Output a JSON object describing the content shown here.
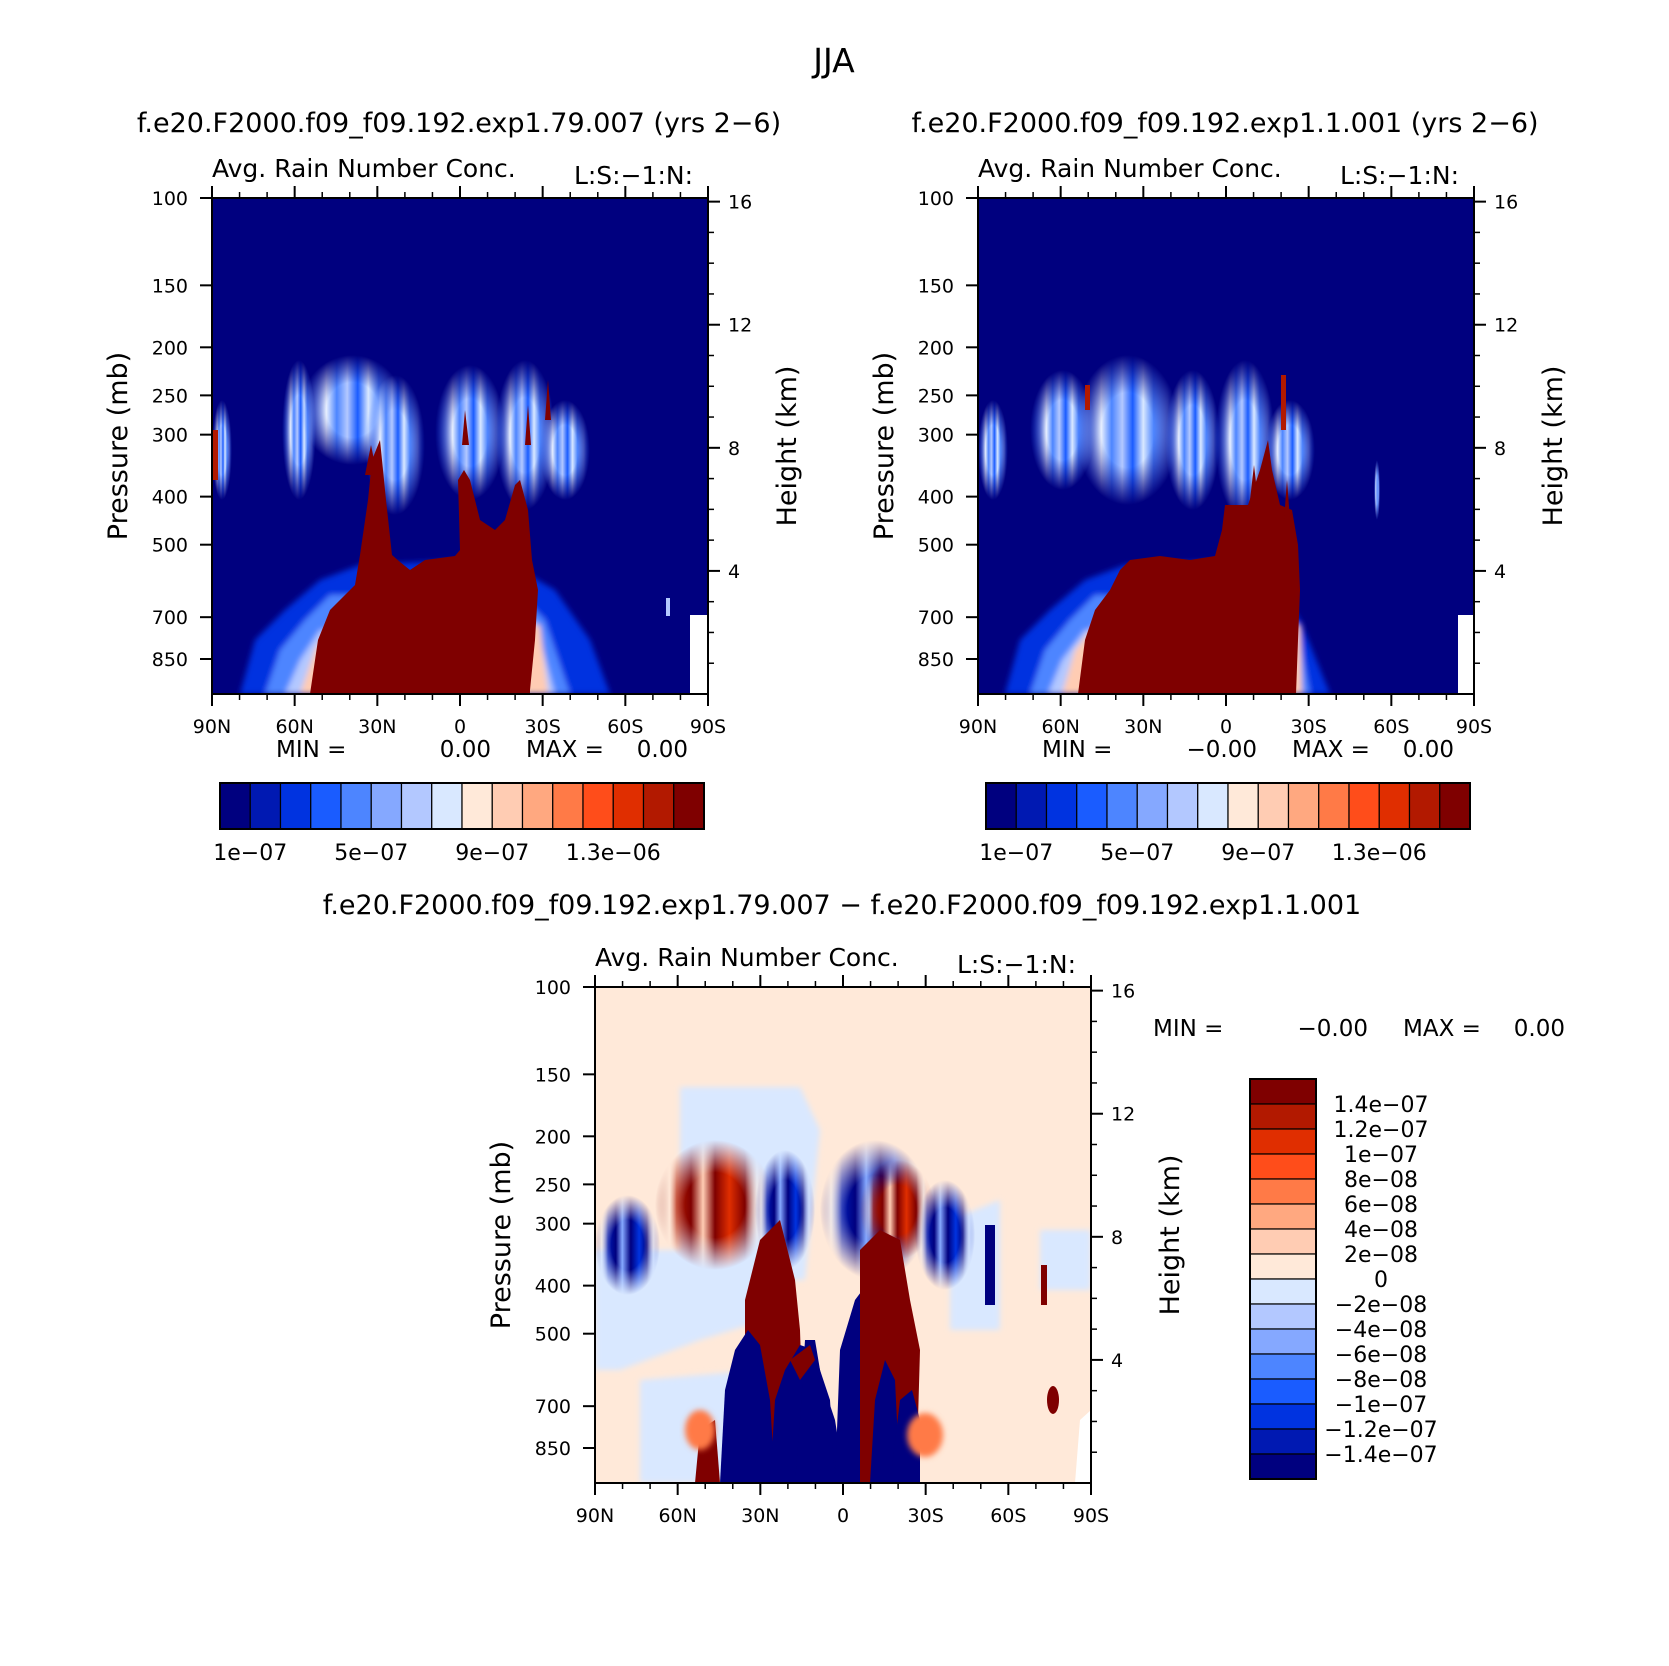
{
  "page": {
    "season": "JJA",
    "run_a_title": "f.e20.F2000.f09_f09.192.exp1.79.007 (yrs 2−6)",
    "run_b_title": "f.e20.F2000.f09_f09.192.exp1.1.001 (yrs 2−6)",
    "diff_title": "f.e20.F2000.f09_f09.192.exp1.79.007 − f.e20.F2000.f09_f09.192.exp1.1.001"
  },
  "chart_data": [
    {
      "id": "panel-a",
      "type": "heatmap",
      "variable_label": "Avg. Rain Number Conc.",
      "corner_label": "L:S:−1:N:",
      "ylabel": "Pressure (mb)",
      "y2label": "Height (km)",
      "x_ticks": [
        "90N",
        "60N",
        "30N",
        "0",
        "30S",
        "60S",
        "90S"
      ],
      "x_tick_values": [
        90,
        60,
        30,
        0,
        -30,
        -60,
        -90
      ],
      "y_ticks": [
        "100",
        "150",
        "200",
        "250",
        "300",
        "400",
        "500",
        "700",
        "850"
      ],
      "y_tick_values": [
        100,
        150,
        200,
        250,
        300,
        400,
        500,
        700,
        850
      ],
      "y2_ticks": [
        "16",
        "12",
        "8",
        "4"
      ],
      "y2_tick_values": [
        16,
        12,
        8,
        4
      ],
      "xlim": [
        90,
        -90
      ],
      "ylim": [
        100,
        1000
      ],
      "y_scale": "log",
      "stats": {
        "min_label": "MIN =",
        "min_value": "0.00",
        "max_label": "MAX =",
        "max_value": "0.00"
      },
      "colorbar": {
        "orientation": "horizontal",
        "colors": [
          "#00007f",
          "#0019b2",
          "#0033e0",
          "#1a5cff",
          "#4d85ff",
          "#85a8ff",
          "#b3c8ff",
          "#d9e8ff",
          "#ffe9d9",
          "#ffccb3",
          "#ffa880",
          "#ff7a47",
          "#ff4d1a",
          "#e02e00",
          "#b21900",
          "#7f0000"
        ],
        "labels": [
          "1e−07",
          "5e−07",
          "9e−07",
          "1.3e−06"
        ]
      },
      "fields": {
        "background": "#00007f",
        "core": {
          "lat_range": [
            40,
            -28
          ],
          "top_mb": "about 500",
          "north_peak_top_mb": 400,
          "south_peak_top_mb": 350
        },
        "upper_blobs_mb": [
          250,
          350
        ]
      }
    },
    {
      "id": "panel-b",
      "type": "heatmap",
      "variable_label": "Avg. Rain Number Conc.",
      "corner_label": "L:S:−1:N:",
      "ylabel": "Pressure (mb)",
      "y2label": "Height (km)",
      "x_ticks": [
        "90N",
        "60N",
        "30N",
        "0",
        "30S",
        "60S",
        "90S"
      ],
      "x_tick_values": [
        90,
        60,
        30,
        0,
        -30,
        -60,
        -90
      ],
      "y_ticks": [
        "100",
        "150",
        "200",
        "250",
        "300",
        "400",
        "500",
        "700",
        "850"
      ],
      "y_tick_values": [
        100,
        150,
        200,
        250,
        300,
        400,
        500,
        700,
        850
      ],
      "y2_ticks": [
        "16",
        "12",
        "8",
        "4"
      ],
      "y2_tick_values": [
        16,
        12,
        8,
        4
      ],
      "xlim": [
        90,
        -90
      ],
      "ylim": [
        100,
        1000
      ],
      "y_scale": "log",
      "stats": {
        "min_label": "MIN =",
        "min_value": "−0.00",
        "max_label": "MAX =",
        "max_value": "0.00"
      },
      "colorbar": {
        "orientation": "horizontal",
        "colors": [
          "#00007f",
          "#0019b2",
          "#0033e0",
          "#1a5cff",
          "#4d85ff",
          "#85a8ff",
          "#b3c8ff",
          "#d9e8ff",
          "#ffe9d9",
          "#ffccb3",
          "#ffa880",
          "#ff7a47",
          "#ff4d1a",
          "#e02e00",
          "#b21900",
          "#7f0000"
        ],
        "labels": [
          "1e−07",
          "5e−07",
          "9e−07",
          "1.3e−06"
        ]
      },
      "fields": {
        "background": "#00007f",
        "core": {
          "lat_range": [
            40,
            -28
          ],
          "top_mb": "about 500",
          "south_peak_top_mb": 400
        },
        "upper_blobs_mb": [
          250,
          350
        ]
      }
    },
    {
      "id": "panel-diff",
      "type": "heatmap",
      "variable_label": "Avg. Rain Number Conc.",
      "corner_label": "L:S:−1:N:",
      "ylabel": "Pressure (mb)",
      "y2label": "Height (km)",
      "x_ticks": [
        "90N",
        "60N",
        "30N",
        "0",
        "30S",
        "60S",
        "90S"
      ],
      "x_tick_values": [
        90,
        60,
        30,
        0,
        -30,
        -60,
        -90
      ],
      "y_ticks": [
        "100",
        "150",
        "200",
        "250",
        "300",
        "400",
        "500",
        "700",
        "850"
      ],
      "y_tick_values": [
        100,
        150,
        200,
        250,
        300,
        400,
        500,
        700,
        850
      ],
      "y2_ticks": [
        "16",
        "12",
        "8",
        "4"
      ],
      "y2_tick_values": [
        16,
        12,
        8,
        4
      ],
      "xlim": [
        90,
        -90
      ],
      "ylim": [
        100,
        1000
      ],
      "y_scale": "log",
      "stats": {
        "min_label": "MIN =",
        "min_value": "−0.00",
        "max_label": "MAX =",
        "max_value": "0.00"
      },
      "colorbar": {
        "orientation": "vertical",
        "colors": [
          "#7f0000",
          "#b21900",
          "#e02e00",
          "#ff4d1a",
          "#ff7a47",
          "#ffa880",
          "#ffccb3",
          "#ffe9d9",
          "#d9e8ff",
          "#b3c8ff",
          "#85a8ff",
          "#4d85ff",
          "#1a5cff",
          "#0033e0",
          "#0019b2",
          "#00007f"
        ],
        "labels": [
          "1.4e−07",
          "1.2e−07",
          "1e−07",
          "8e−08",
          "6e−08",
          "4e−08",
          "2e−08",
          "0",
          "−2e−08",
          "−4e−08",
          "−6e−08",
          "−8e−08",
          "−1e−07",
          "−1.2e−07",
          "−1.4e−07"
        ]
      },
      "fields": {
        "background": "#ffe9d9",
        "light_blue_region": {
          "lat_range": [
            90,
            40
          ],
          "mb_range": [
            350,
            550
          ]
        },
        "dipole_bands_mb": [
          170,
          450
        ]
      }
    }
  ]
}
